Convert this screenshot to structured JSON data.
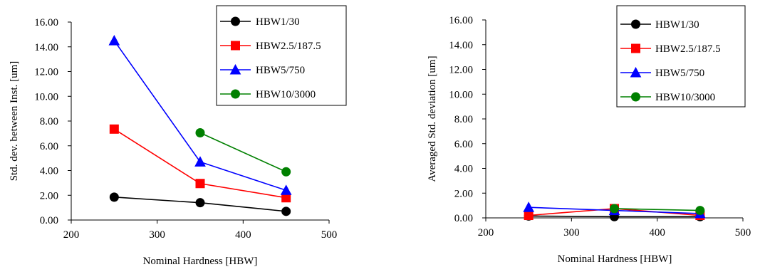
{
  "chart_data": [
    {
      "type": "line",
      "xlabel": "Nominal Hardness [HBW]",
      "ylabel": "Std. dev. between Inst. [um]",
      "xlim": [
        200,
        500
      ],
      "ylim": [
        0,
        16
      ],
      "xticks": [
        "200",
        "300",
        "400",
        "500"
      ],
      "yticks": [
        "0.00",
        "2.00",
        "4.00",
        "6.00",
        "8.00",
        "10.00",
        "12.00",
        "14.00",
        "16.00"
      ],
      "grid": false,
      "legend_position": "top-right",
      "series": [
        {
          "name": "HBW1/30",
          "color": "#000000",
          "marker": "circle",
          "x": [
            250,
            350,
            450
          ],
          "y": [
            1.85,
            1.4,
            0.7
          ]
        },
        {
          "name": "HBW2.5/187.5",
          "color": "#ff0000",
          "marker": "square",
          "x": [
            250,
            350,
            450
          ],
          "y": [
            7.35,
            2.95,
            1.8
          ]
        },
        {
          "name": "HBW5/750",
          "color": "#0000ff",
          "marker": "triangle",
          "x": [
            250,
            350,
            450
          ],
          "y": [
            14.5,
            4.7,
            2.4
          ]
        },
        {
          "name": "HBW10/3000",
          "color": "#008000",
          "marker": "circle",
          "x": [
            350,
            450
          ],
          "y": [
            7.05,
            3.9
          ]
        }
      ]
    },
    {
      "type": "line",
      "xlabel": "Nominal Hardness [HBW]",
      "ylabel": "Averaged Std. deviation [um]",
      "xlim": [
        200,
        500
      ],
      "ylim": [
        0,
        16
      ],
      "xticks": [
        "200",
        "300",
        "400",
        "500"
      ],
      "yticks": [
        "0.00",
        "2.00",
        "4.00",
        "6.00",
        "8.00",
        "10.00",
        "12.00",
        "14.00",
        "16.00"
      ],
      "grid": false,
      "legend_position": "top-right",
      "series": [
        {
          "name": "HBW1/30",
          "color": "#000000",
          "marker": "circle",
          "x": [
            250,
            350,
            450
          ],
          "y": [
            0.15,
            0.1,
            0.1
          ]
        },
        {
          "name": "HBW2.5/187.5",
          "color": "#ff0000",
          "marker": "square",
          "x": [
            250,
            350,
            450
          ],
          "y": [
            0.2,
            0.75,
            0.2
          ]
        },
        {
          "name": "HBW5/750",
          "color": "#0000ff",
          "marker": "triangle",
          "x": [
            250,
            350,
            450
          ],
          "y": [
            0.85,
            0.6,
            0.35
          ]
        },
        {
          "name": "HBW10/3000",
          "color": "#008000",
          "marker": "circle",
          "x": [
            350,
            450
          ],
          "y": [
            0.75,
            0.6
          ]
        }
      ]
    }
  ]
}
